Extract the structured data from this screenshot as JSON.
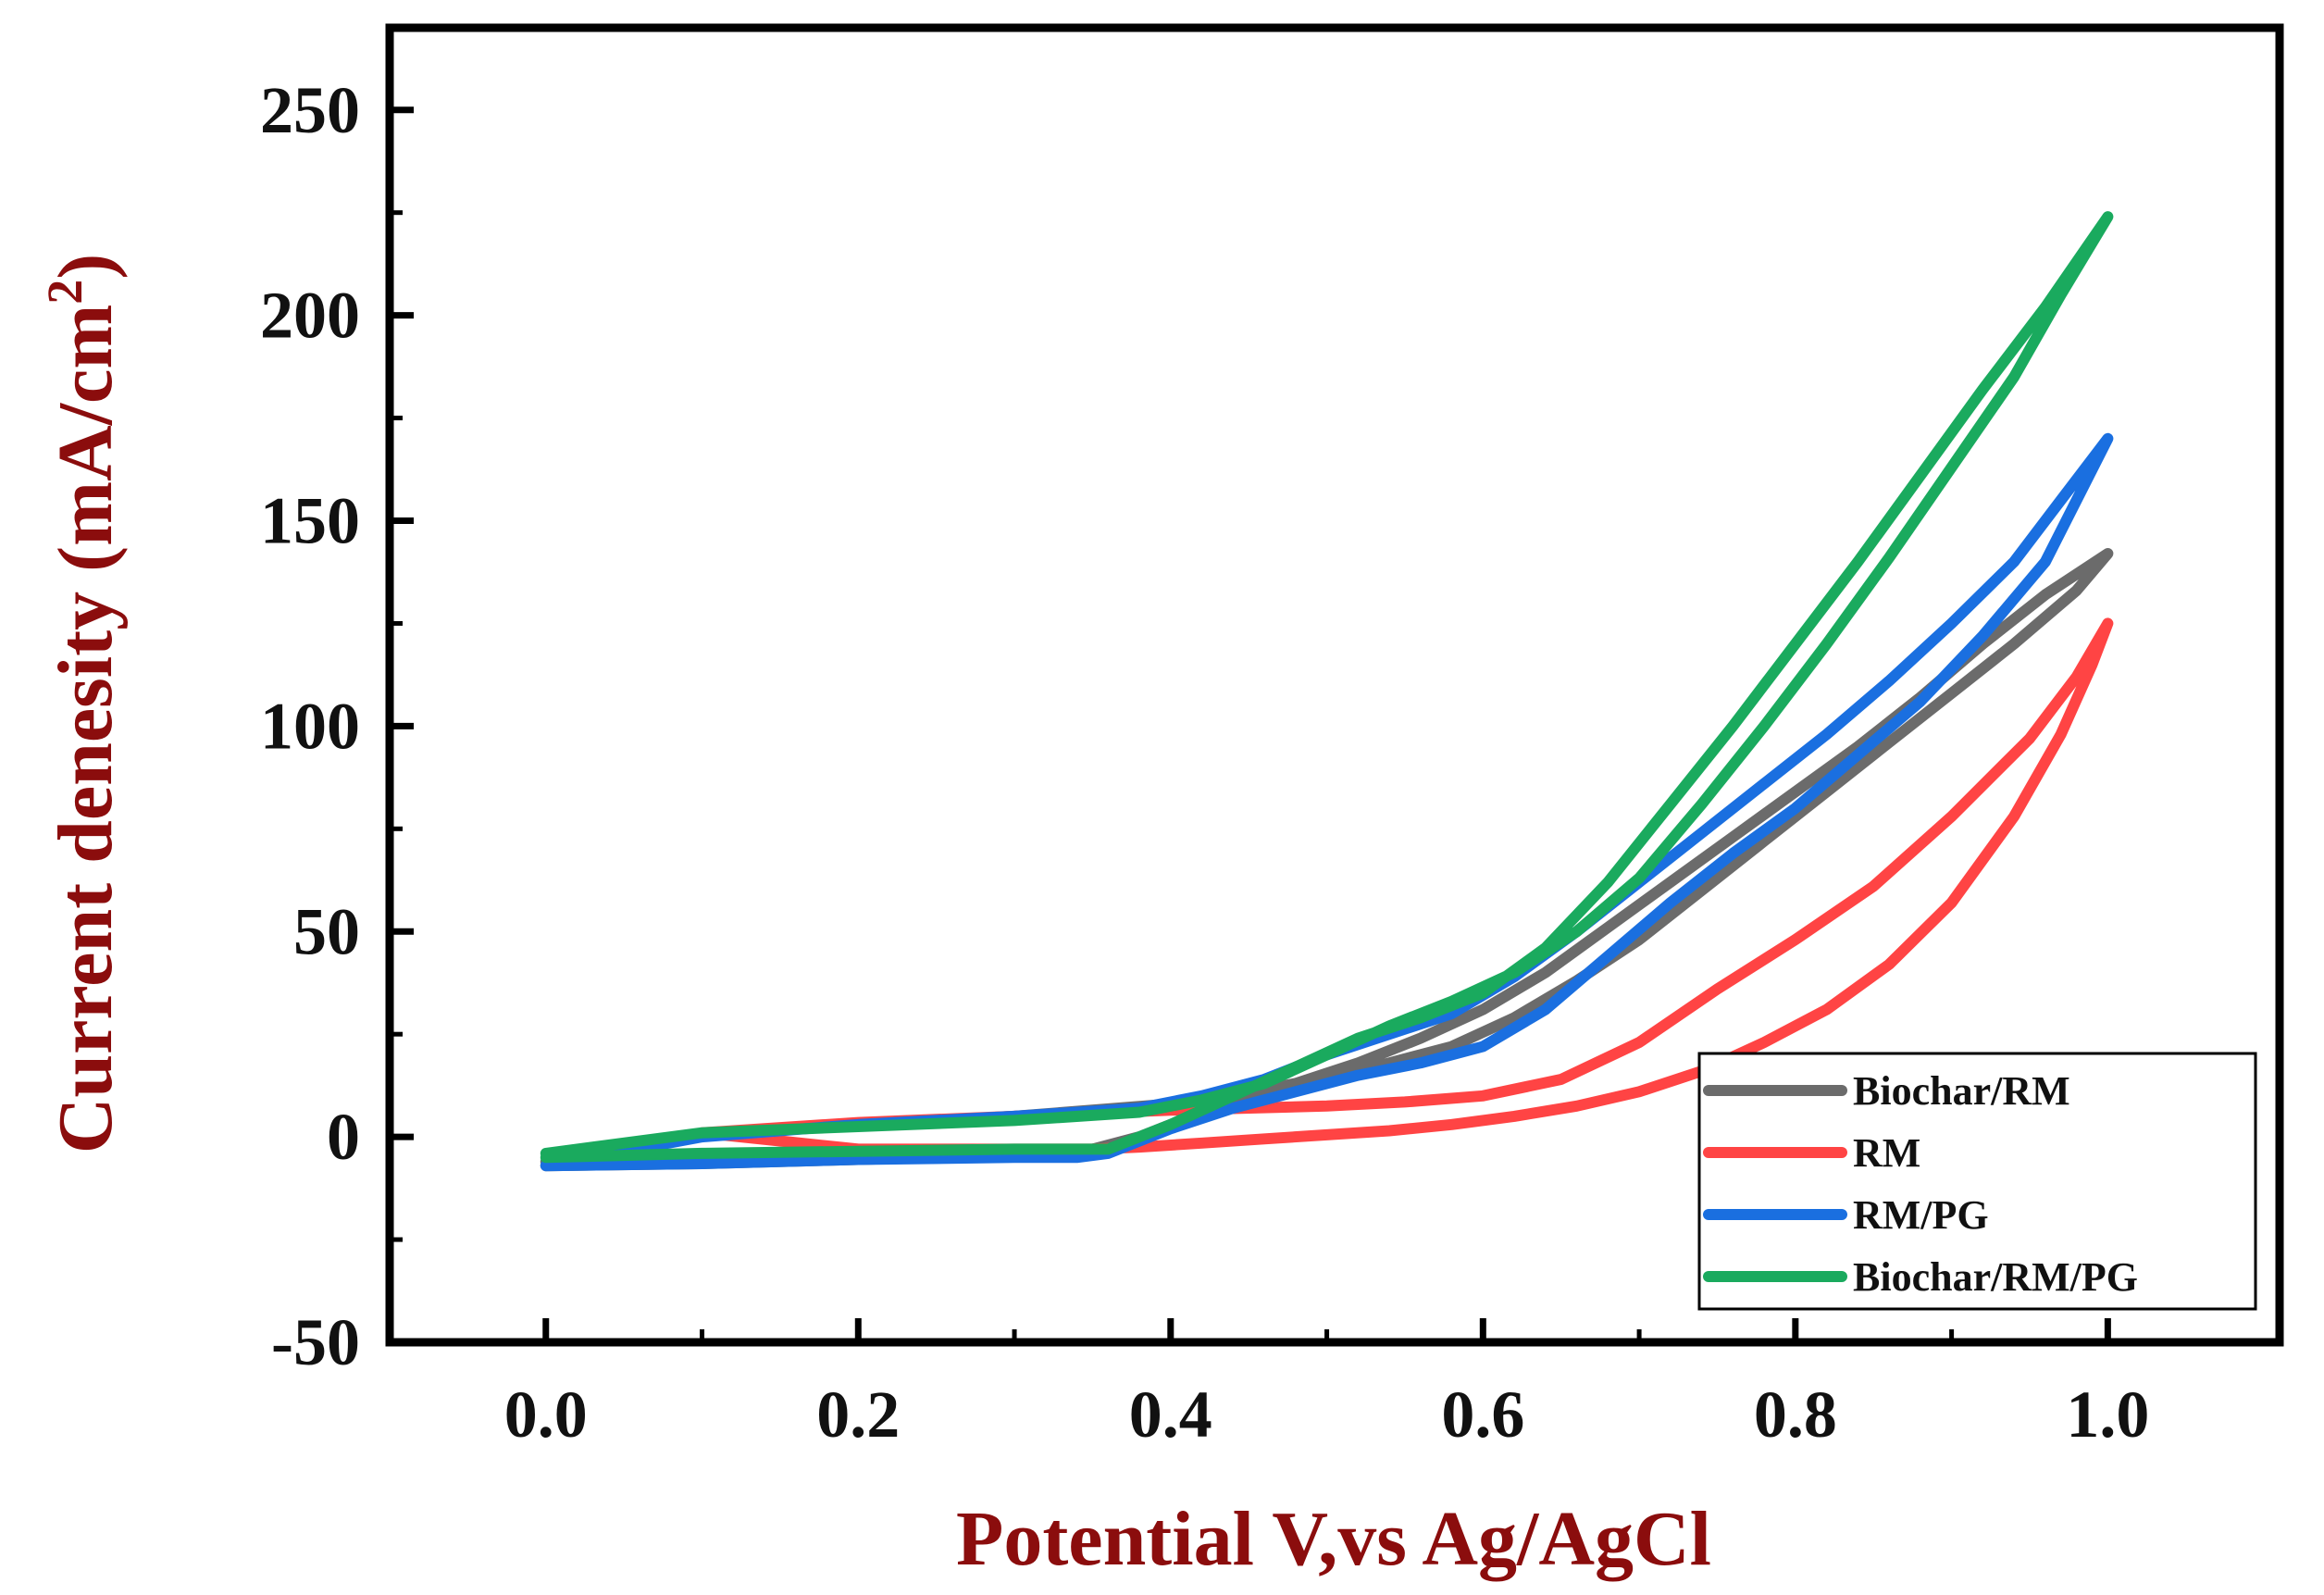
{
  "chart_data": {
    "type": "line",
    "title": "",
    "xlabel": "Potential V,vs Ag/AgCl",
    "ylabel_main": "Current denesity (mA/cm",
    "ylabel_sup": "2",
    "ylabel_close": ")",
    "label_color": "#8b0d0d",
    "xlim": [
      -0.1,
      1.11
    ],
    "ylim": [
      -50,
      270
    ],
    "xticks": [
      {
        "value": 0.0,
        "label": "0.0"
      },
      {
        "value": 0.2,
        "label": "0.2"
      },
      {
        "value": 0.4,
        "label": "0.4"
      },
      {
        "value": 0.6,
        "label": "0.6"
      },
      {
        "value": 0.8,
        "label": "0.8"
      },
      {
        "value": 1.0,
        "label": "1.0"
      }
    ],
    "xminor": [
      0.1,
      0.3,
      0.5,
      0.7,
      0.9
    ],
    "yticks": [
      {
        "value": -50,
        "label": "-50"
      },
      {
        "value": 0,
        "label": "0"
      },
      {
        "value": 50,
        "label": "50"
      },
      {
        "value": 100,
        "label": "100"
      },
      {
        "value": 150,
        "label": "150"
      },
      {
        "value": 200,
        "label": "200"
      },
      {
        "value": 250,
        "label": "250"
      }
    ],
    "yminor": [
      -25,
      25,
      75,
      125,
      175,
      225
    ],
    "grid": false,
    "legend_position": "bottom-right",
    "series": [
      {
        "name": "Biochar/RM",
        "color": "#6b6b6b",
        "x": [
          0.0,
          0.1,
          0.2,
          0.3,
          0.34,
          0.38,
          0.42,
          0.46,
          0.5,
          0.54,
          0.58,
          0.62,
          0.66,
          0.7,
          0.74,
          0.78,
          0.82,
          0.86,
          0.9,
          0.94,
          0.98,
          1.0,
          0.96,
          0.92,
          0.88,
          0.84,
          0.8,
          0.76,
          0.72,
          0.68,
          0.64,
          0.6,
          0.56,
          0.52,
          0.48,
          0.44,
          0.4,
          0.3,
          0.2,
          0.1,
          0.0
        ],
        "y": [
          -7,
          -6.5,
          -5.5,
          -4.5,
          -4,
          0,
          6,
          10,
          14,
          18,
          22,
          29,
          38,
          48,
          60,
          72,
          84,
          96,
          108,
          120,
          133,
          142,
          132,
          120,
          107,
          95,
          84,
          73,
          62,
          51,
          40,
          31,
          24,
          18,
          13,
          10,
          8,
          5,
          3,
          0.5,
          -6
        ]
      },
      {
        "name": "RM",
        "color": "#ff4444",
        "x": [
          0.1,
          0.2,
          0.3,
          0.4,
          0.5,
          0.55,
          0.6,
          0.65,
          0.7,
          0.75,
          0.8,
          0.85,
          0.9,
          0.95,
          0.98,
          1.0,
          0.99,
          0.97,
          0.94,
          0.9,
          0.86,
          0.82,
          0.78,
          0.74,
          0.7,
          0.66,
          0.62,
          0.58,
          0.54,
          0.5,
          0.46,
          0.42,
          0.38,
          0.35,
          0.3,
          0.2,
          0.1
        ],
        "y": [
          1,
          3.5,
          5,
          6.5,
          7.5,
          8.5,
          10,
          14,
          23,
          36,
          48,
          61,
          78,
          97,
          112,
          125,
          115,
          98,
          78,
          57,
          42,
          31,
          23,
          16,
          11,
          7.5,
          5,
          3,
          1.5,
          0.5,
          -0.5,
          -1.5,
          -2.5,
          -3,
          -3,
          -3,
          1
        ]
      },
      {
        "name": "RM/PG",
        "color": "#1a6fe0",
        "x": [
          0.0,
          0.1,
          0.2,
          0.3,
          0.34,
          0.36,
          0.4,
          0.44,
          0.48,
          0.52,
          0.56,
          0.6,
          0.64,
          0.68,
          0.72,
          0.76,
          0.8,
          0.84,
          0.88,
          0.92,
          0.96,
          1.0,
          0.97,
          0.94,
          0.9,
          0.86,
          0.82,
          0.78,
          0.74,
          0.7,
          0.66,
          0.62,
          0.58,
          0.54,
          0.5,
          0.46,
          0.42,
          0.38,
          0.3,
          0.2,
          0.1,
          0.0
        ],
        "y": [
          -7,
          -6.5,
          -5.5,
          -5,
          -5,
          -4,
          2,
          7,
          11,
          15,
          18,
          22,
          31,
          44,
          57,
          69,
          80,
          93,
          106,
          122,
          140,
          170,
          155,
          140,
          125,
          111,
          98,
          86,
          74,
          62,
          50,
          39,
          30,
          25,
          20,
          14,
          10,
          7,
          5,
          3,
          0,
          -7
        ]
      },
      {
        "name": "Biochar/RM/PG",
        "color": "#1aaa5e",
        "x": [
          0.0,
          0.1,
          0.2,
          0.3,
          0.36,
          0.4,
          0.44,
          0.48,
          0.52,
          0.56,
          0.6,
          0.64,
          0.68,
          0.72,
          0.76,
          0.8,
          0.84,
          0.88,
          0.92,
          0.96,
          1.0,
          0.97,
          0.94,
          0.9,
          0.86,
          0.82,
          0.78,
          0.74,
          0.7,
          0.66,
          0.62,
          0.58,
          0.54,
          0.5,
          0.46,
          0.42,
          0.38,
          0.3,
          0.2,
          0.1,
          0.0
        ],
        "y": [
          -5,
          -4,
          -3.5,
          -3,
          -3,
          3,
          10,
          17,
          24,
          29,
          35,
          46,
          62,
          81,
          100,
          120,
          140,
          161,
          182,
          202,
          224,
          205,
          185,
          163,
          141,
          120,
          100,
          81,
          63,
          50,
          40,
          33,
          27,
          20,
          13,
          9,
          6,
          4,
          2.5,
          1,
          -4
        ]
      }
    ]
  }
}
